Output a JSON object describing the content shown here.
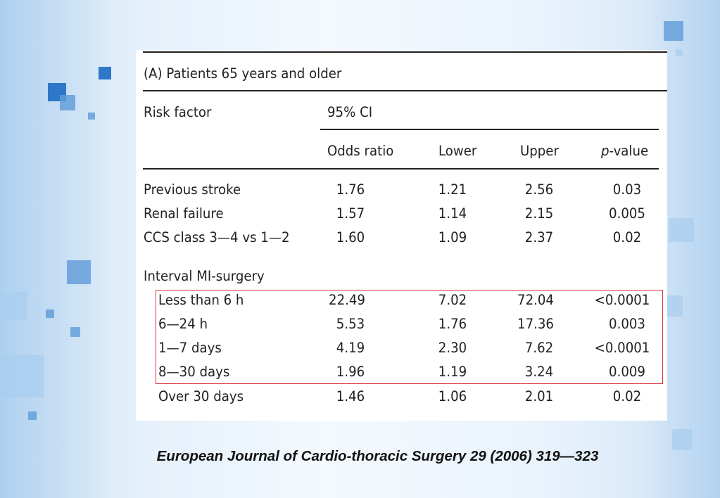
{
  "table": {
    "title": "(A) Patients 65 years and older",
    "col_risk_factor": "Risk factor",
    "col_ci": "95% CI",
    "col_odds_ratio": "Odds ratio",
    "col_lower": "Lower",
    "col_upper": "Upper",
    "col_pvalue_italic": "p",
    "col_pvalue_rest": "-value",
    "rows": [
      {
        "label": "Previous stroke",
        "or": "1.76",
        "lower": "1.21",
        "upper": "2.56",
        "p": "0.03"
      },
      {
        "label": "Renal failure",
        "or": "1.57",
        "lower": "1.14",
        "upper": "2.15",
        "p": "0.005"
      },
      {
        "label": "CCS class 3—4 vs 1—2",
        "or": "1.60",
        "lower": "1.09",
        "upper": "2.37",
        "p": "0.02"
      }
    ],
    "group_label": "Interval MI-surgery",
    "group_rows": [
      {
        "label": "Less than 6 h",
        "or": "22.49",
        "lower": "7.02",
        "upper": "72.04",
        "p": "<0.0001"
      },
      {
        "label": "6—24 h",
        "or": "5.53",
        "lower": "1.76",
        "upper": "17.36",
        "p": "0.003"
      },
      {
        "label": "1—7 days",
        "or": "4.19",
        "lower": "2.30",
        "upper": "7.62",
        "p": "<0.0001"
      },
      {
        "label": "8—30 days",
        "or": "1.96",
        "lower": "1.19",
        "upper": "3.24",
        "p": "0.009"
      },
      {
        "label": "Over 30 days",
        "or": "1.46",
        "lower": "1.06",
        "upper": "2.01",
        "p": "0.02"
      }
    ]
  },
  "citation": "European Journal of Cardio-thoracic Surgery 29 (2006) 319—323",
  "colors": {
    "highlight": "#d9323a",
    "accent": "#2f78c8"
  }
}
